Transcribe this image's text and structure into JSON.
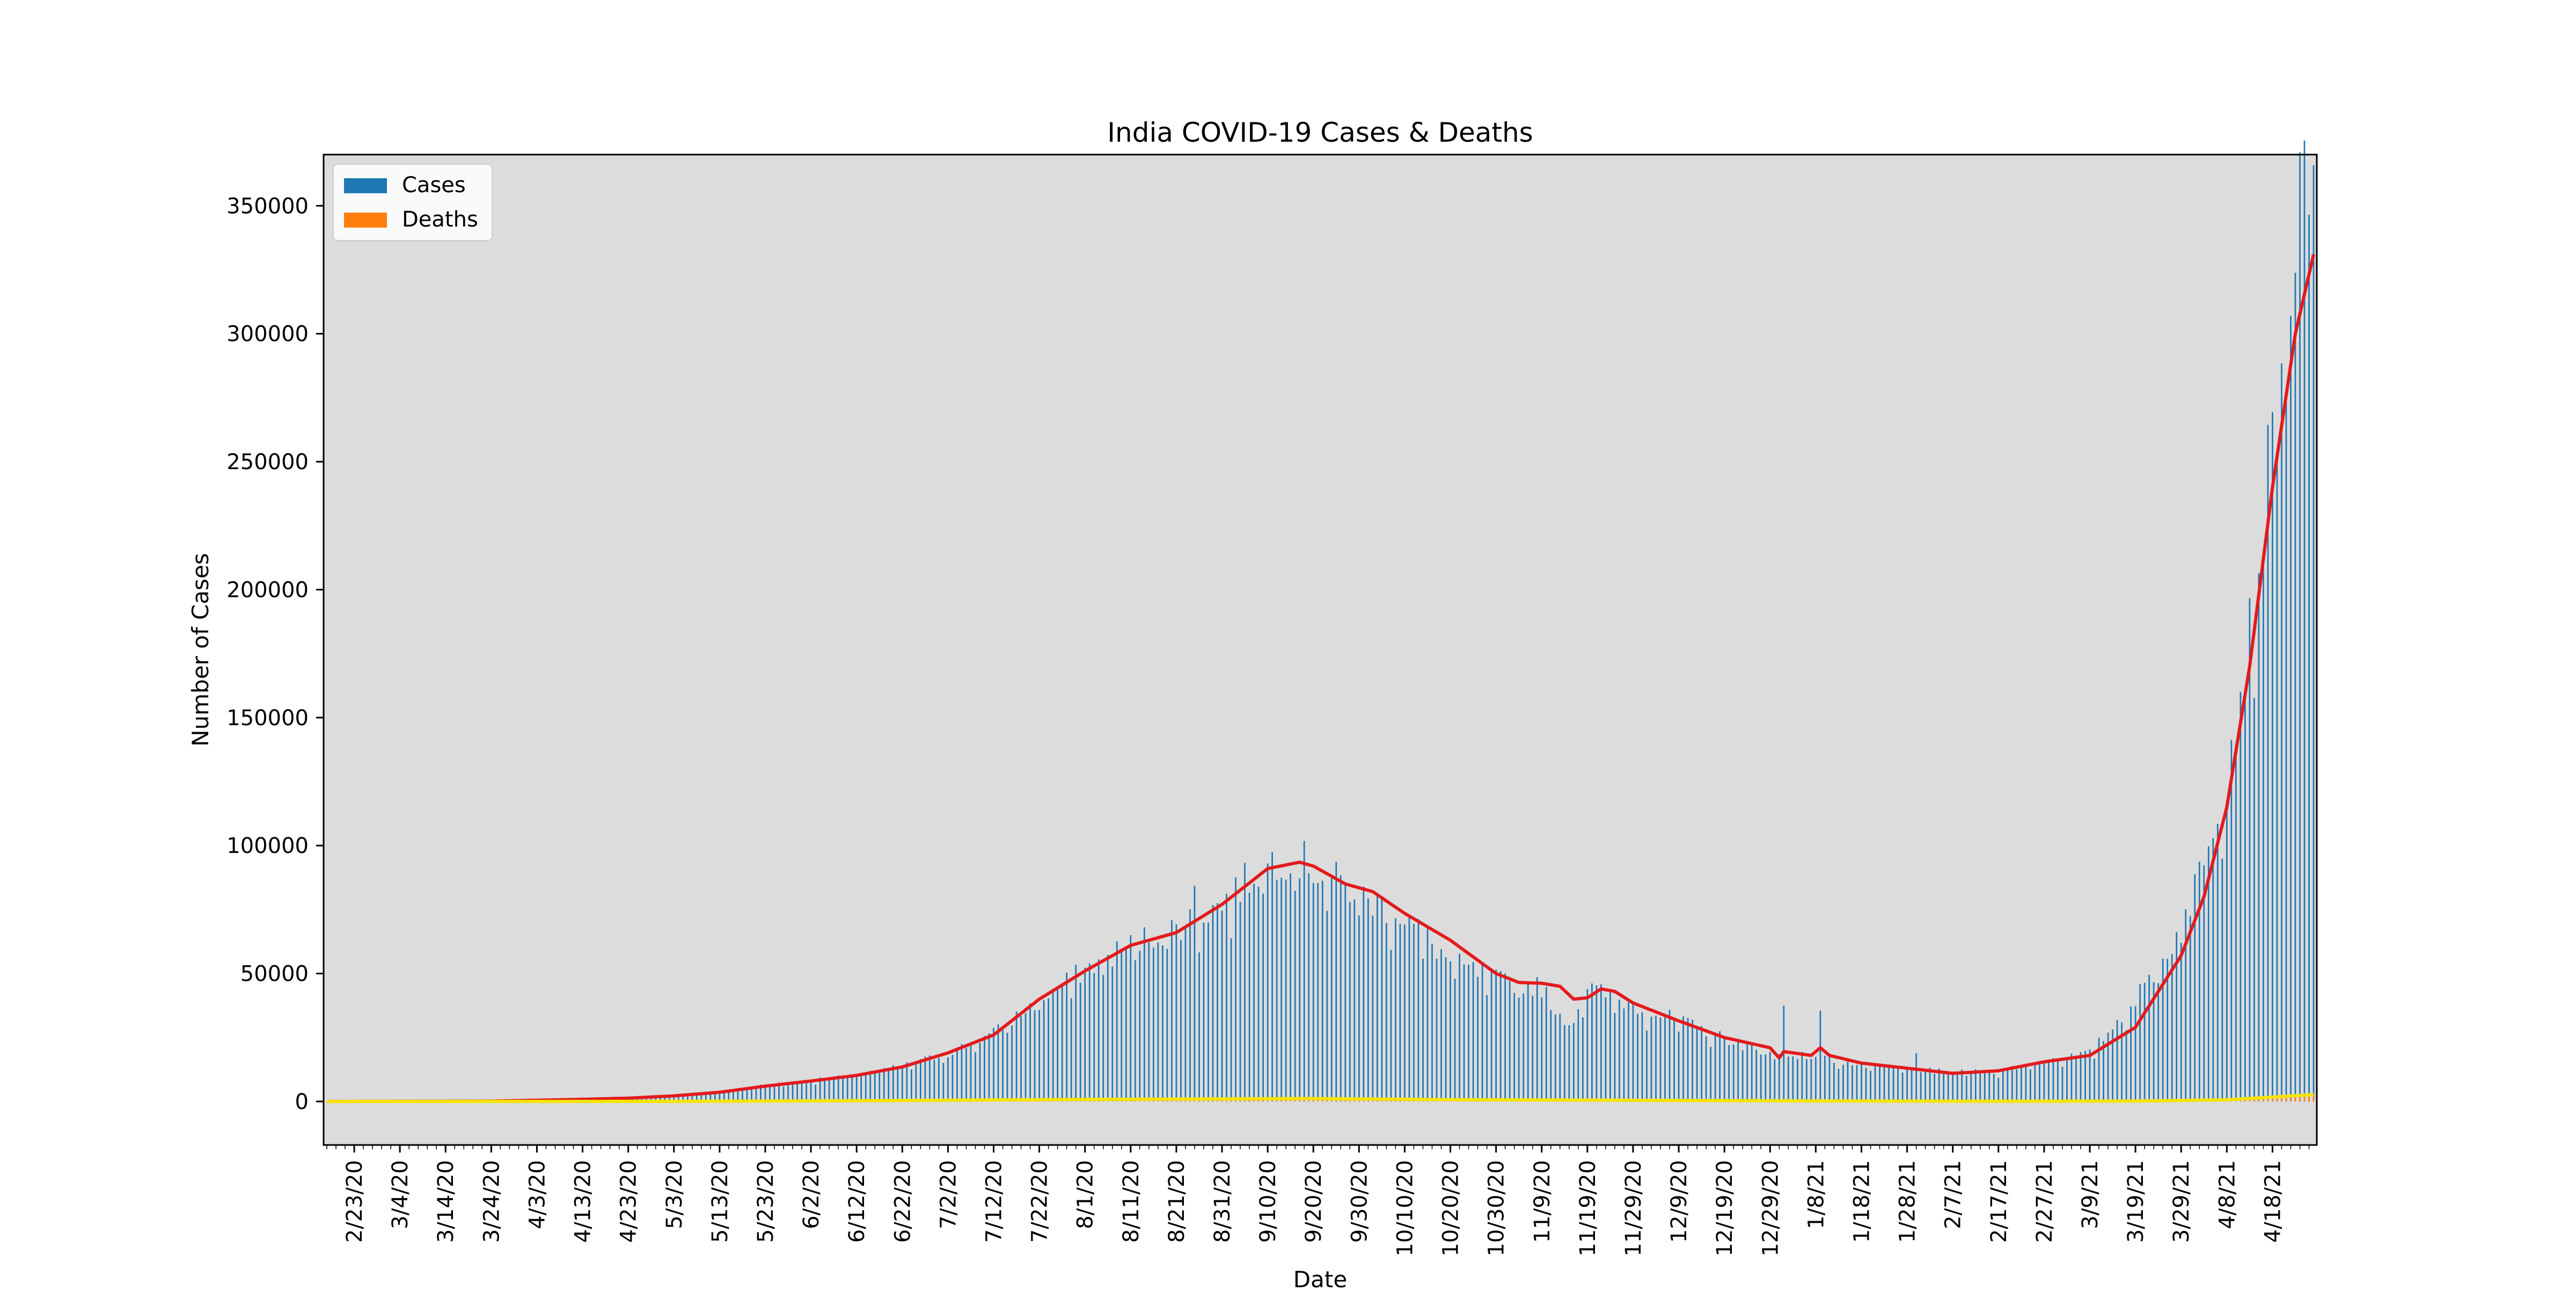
{
  "chart_data": {
    "type": "bar",
    "title": "India COVID-19 Cases & Deaths",
    "xlabel": "Date",
    "ylabel": "Number of Cases",
    "ylim": [
      -17000,
      370000
    ],
    "yticks": [
      0,
      50000,
      100000,
      150000,
      200000,
      250000,
      300000,
      350000
    ],
    "x_start_date": "2020-02-17",
    "x_end_date": "2021-04-27",
    "xtick_labels": [
      "2/23/20",
      "3/4/20",
      "3/14/20",
      "3/24/20",
      "4/3/20",
      "4/13/20",
      "4/23/20",
      "5/3/20",
      "5/13/20",
      "5/23/20",
      "6/2/20",
      "6/12/20",
      "6/22/20",
      "7/2/20",
      "7/12/20",
      "7/22/20",
      "8/1/20",
      "8/11/20",
      "8/21/20",
      "8/31/20",
      "9/10/20",
      "9/20/20",
      "9/30/20",
      "10/10/20",
      "10/20/20",
      "10/30/20",
      "11/9/20",
      "11/19/20",
      "11/29/20",
      "12/9/20",
      "12/19/20",
      "12/29/20",
      "1/8/21",
      "1/18/21",
      "1/28/21",
      "2/7/21",
      "2/17/21",
      "2/27/21",
      "3/9/21",
      "3/19/21",
      "3/29/21",
      "4/8/21",
      "4/18/21"
    ],
    "legend": {
      "placement": "upper-left",
      "entries": [
        {
          "label": "Cases",
          "color": "#1f77b4"
        },
        {
          "label": "Deaths",
          "color": "#ff7f0e"
        }
      ]
    },
    "plot_background": "#dcdcdc",
    "grid": false,
    "series": [
      {
        "name": "Cases",
        "style": "bars",
        "color": "#1f77b4",
        "daily_anchors": [
          [
            "2/17/20",
            0
          ],
          [
            "3/4/20",
            5
          ],
          [
            "3/24/20",
            100
          ],
          [
            "4/3/20",
            500
          ],
          [
            "4/13/20",
            900
          ],
          [
            "4/23/20",
            1400
          ],
          [
            "5/3/20",
            2600
          ],
          [
            "5/13/20",
            3600
          ],
          [
            "5/23/20",
            6500
          ],
          [
            "6/2/20",
            8200
          ],
          [
            "6/12/20",
            10500
          ],
          [
            "6/22/20",
            14000
          ],
          [
            "7/2/20",
            19000
          ],
          [
            "7/12/20",
            27000
          ],
          [
            "7/22/20",
            40000
          ],
          [
            "8/1/20",
            52000
          ],
          [
            "8/11/20",
            62000
          ],
          [
            "8/21/20",
            69000
          ],
          [
            "8/31/20",
            78000
          ],
          [
            "9/10/20",
            95000
          ],
          [
            "9/16/20",
            97000
          ],
          [
            "9/20/20",
            92000
          ],
          [
            "9/30/20",
            82000
          ],
          [
            "10/10/20",
            73000
          ],
          [
            "10/20/20",
            55000
          ],
          [
            "10/30/20",
            48000
          ],
          [
            "11/9/20",
            45000
          ],
          [
            "11/15/20",
            30000
          ],
          [
            "11/19/20",
            45000
          ],
          [
            "11/29/20",
            38000
          ],
          [
            "12/9/20",
            32000
          ],
          [
            "12/19/20",
            25000
          ],
          [
            "12/29/20",
            19000
          ],
          [
            "1/8/21",
            18000
          ],
          [
            "1/18/21",
            14000
          ],
          [
            "1/28/21",
            13000
          ],
          [
            "2/7/21",
            11500
          ],
          [
            "2/17/21",
            12000
          ],
          [
            "2/27/21",
            16000
          ],
          [
            "3/9/21",
            19000
          ],
          [
            "3/19/21",
            40000
          ],
          [
            "3/29/21",
            68000
          ],
          [
            "4/3/21",
            100000
          ],
          [
            "4/8/21",
            130000
          ],
          [
            "4/13/21",
            185000
          ],
          [
            "4/18/21",
            260000
          ],
          [
            "4/23/21",
            346000
          ],
          [
            "4/27/21",
            353000
          ]
        ],
        "notable_spikes": [
          [
            "8/25/20",
            86000
          ],
          [
            "9/16/20",
            98000
          ],
          [
            "1/1/21",
            37000
          ],
          [
            "1/9/21",
            37000
          ],
          [
            "1/30/21",
            19000
          ]
        ]
      },
      {
        "name": "Deaths",
        "style": "bars",
        "color": "#ff7f0e",
        "daily_anchors": [
          [
            "2/17/20",
            0
          ],
          [
            "4/3/20",
            20
          ],
          [
            "5/3/20",
            80
          ],
          [
            "6/12/20",
            350
          ],
          [
            "7/22/20",
            750
          ],
          [
            "8/21/20",
            1000
          ],
          [
            "9/20/20",
            1200
          ],
          [
            "10/20/20",
            700
          ],
          [
            "11/19/20",
            550
          ],
          [
            "12/19/20",
            350
          ],
          [
            "1/18/21",
            180
          ],
          [
            "2/17/21",
            100
          ],
          [
            "3/19/21",
            180
          ],
          [
            "4/8/21",
            700
          ],
          [
            "4/27/21",
            2800
          ]
        ]
      }
    ],
    "overlays": [
      {
        "kind": "moving-average-line",
        "color": "#e41a1c",
        "of_series": "Cases",
        "points": [
          [
            "2/17/20",
            0
          ],
          [
            "3/24/20",
            150
          ],
          [
            "4/13/20",
            850
          ],
          [
            "4/23/20",
            1300
          ],
          [
            "5/3/20",
            2200
          ],
          [
            "5/13/20",
            3600
          ],
          [
            "5/23/20",
            6000
          ],
          [
            "6/2/20",
            8000
          ],
          [
            "6/12/20",
            10200
          ],
          [
            "6/22/20",
            13500
          ],
          [
            "7/2/20",
            19000
          ],
          [
            "7/12/20",
            26000
          ],
          [
            "7/22/20",
            40000
          ],
          [
            "8/1/20",
            51000
          ],
          [
            "8/11/20",
            61000
          ],
          [
            "8/21/20",
            66000
          ],
          [
            "8/31/20",
            77000
          ],
          [
            "9/10/20",
            91000
          ],
          [
            "9/17/20",
            93500
          ],
          [
            "9/20/20",
            92000
          ],
          [
            "9/27/20",
            85000
          ],
          [
            "10/3/20",
            82000
          ],
          [
            "10/10/20",
            73500
          ],
          [
            "10/20/20",
            63000
          ],
          [
            "10/30/20",
            50000
          ],
          [
            "11/4/20",
            46500
          ],
          [
            "11/9/20",
            46200
          ],
          [
            "11/13/20",
            45000
          ],
          [
            "11/16/20",
            40000
          ],
          [
            "11/19/20",
            40500
          ],
          [
            "11/22/20",
            44000
          ],
          [
            "11/25/20",
            43000
          ],
          [
            "11/29/20",
            38500
          ],
          [
            "12/9/20",
            31500
          ],
          [
            "12/19/20",
            25000
          ],
          [
            "12/29/20",
            21000
          ],
          [
            "12/31/20",
            17000
          ],
          [
            "1/1/21",
            19500
          ],
          [
            "1/7/21",
            18000
          ],
          [
            "1/9/21",
            21000
          ],
          [
            "1/11/21",
            18000
          ],
          [
            "1/18/21",
            15000
          ],
          [
            "1/28/21",
            13000
          ],
          [
            "2/7/21",
            11000
          ],
          [
            "2/17/21",
            12000
          ],
          [
            "2/27/21",
            15500
          ],
          [
            "3/9/21",
            18000
          ],
          [
            "3/19/21",
            29000
          ],
          [
            "3/29/21",
            57000
          ],
          [
            "4/3/21",
            80000
          ],
          [
            "4/8/21",
            115000
          ],
          [
            "4/13/21",
            170000
          ],
          [
            "4/18/21",
            240000
          ],
          [
            "4/23/21",
            300000
          ],
          [
            "4/27/21",
            331000
          ]
        ]
      },
      {
        "kind": "moving-average-line",
        "color": "#f5e400",
        "of_series": "Deaths",
        "points": [
          [
            "2/17/20",
            0
          ],
          [
            "5/3/20",
            70
          ],
          [
            "6/12/20",
            300
          ],
          [
            "7/22/20",
            700
          ],
          [
            "8/21/20",
            950
          ],
          [
            "9/20/20",
            1150
          ],
          [
            "10/20/20",
            700
          ],
          [
            "11/19/20",
            520
          ],
          [
            "12/19/20",
            340
          ],
          [
            "1/18/21",
            170
          ],
          [
            "2/17/21",
            100
          ],
          [
            "3/19/21",
            170
          ],
          [
            "4/8/21",
            650
          ],
          [
            "4/27/21",
            2700
          ]
        ]
      }
    ]
  }
}
